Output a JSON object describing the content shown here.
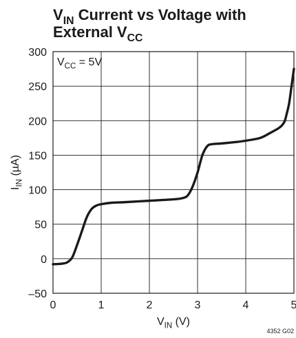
{
  "chart_data": {
    "type": "line",
    "title": {
      "line1": {
        "main": "V",
        "sub": "IN",
        "rest": " Current vs Voltage with"
      },
      "line2": {
        "main": "External V",
        "sub": "CC",
        "rest": ""
      }
    },
    "xlabel": {
      "main": "V",
      "sub": "IN",
      "rest": " (V)"
    },
    "ylabel": {
      "main": "I",
      "sub": "IN",
      "rest": " (µA)"
    },
    "xlim": [
      0,
      5
    ],
    "ylim": [
      -50,
      300
    ],
    "xticks": [
      0,
      1,
      2,
      3,
      4,
      5
    ],
    "yticks": [
      -50,
      0,
      50,
      100,
      150,
      200,
      250,
      300
    ],
    "xtick_labels": [
      "0",
      "1",
      "2",
      "3",
      "4",
      "5"
    ],
    "ytick_labels": [
      "–50",
      "0",
      "50",
      "100",
      "150",
      "200",
      "250",
      "300"
    ],
    "grid": true,
    "annotation": {
      "main": "V",
      "sub": "CC",
      "rest": " = 5V"
    },
    "figure_id": "4352 G02",
    "series": [
      {
        "color": "#1a1a1a",
        "x": [
          0,
          0.2,
          0.3,
          0.4,
          0.5,
          0.6,
          0.7,
          0.8,
          0.9,
          1.0,
          1.2,
          1.5,
          2.0,
          2.5,
          2.7,
          2.8,
          2.9,
          3.0,
          3.1,
          3.2,
          3.3,
          3.5,
          3.8,
          4.0,
          4.3,
          4.5,
          4.7,
          4.8,
          4.85,
          4.9,
          4.95,
          5.0
        ],
        "y": [
          -8,
          -7,
          -5,
          2,
          20,
          40,
          60,
          72,
          77,
          79,
          81,
          82,
          84,
          86,
          88,
          92,
          105,
          125,
          150,
          163,
          166,
          167,
          169,
          171,
          175,
          182,
          190,
          198,
          210,
          225,
          250,
          275
        ]
      }
    ]
  }
}
